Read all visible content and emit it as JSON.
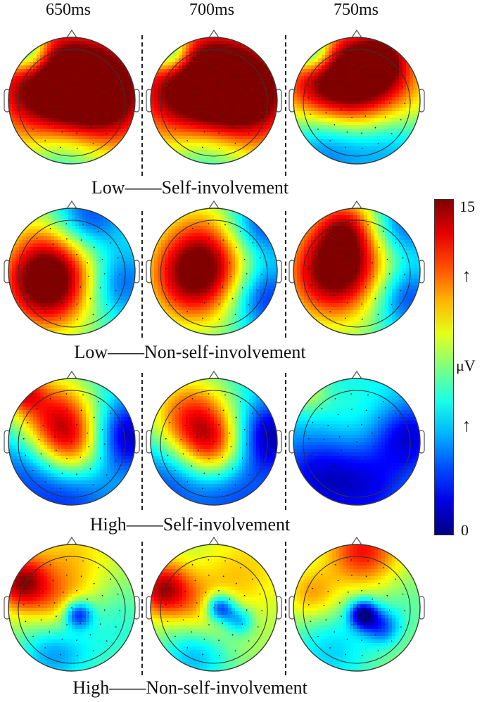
{
  "time_labels": [
    "650ms",
    "700ms",
    "750ms"
  ],
  "conditions": [
    "Low——Self-involvement",
    "Low——Non-self-involvement",
    "High——Self-involvement",
    "High——Non-self-involvement"
  ],
  "colorbar": {
    "max_label": "15",
    "min_label": "0",
    "unit_label": "μV",
    "arrow_up": "↑",
    "range": [
      0,
      15
    ],
    "colormap": "jet"
  },
  "maps": [
    [
      {
        "base": 7.5,
        "blobs": [
          [
            0.55,
            0.45,
            7,
            0.35
          ],
          [
            0.25,
            0.4,
            5,
            0.35
          ],
          [
            0.8,
            0.45,
            4.5,
            0.3
          ],
          [
            0.15,
            0.12,
            -6,
            0.12
          ],
          [
            0.45,
            0.9,
            -3.5,
            0.25
          ],
          [
            0.5,
            0.75,
            -1,
            0.3
          ]
        ]
      },
      {
        "base": 7.5,
        "blobs": [
          [
            0.55,
            0.45,
            7,
            0.35
          ],
          [
            0.25,
            0.4,
            5,
            0.35
          ],
          [
            0.8,
            0.45,
            4.5,
            0.3
          ],
          [
            0.15,
            0.12,
            -6,
            0.12
          ],
          [
            0.45,
            0.9,
            -3.5,
            0.25
          ],
          [
            0.5,
            0.75,
            -1,
            0.3
          ]
        ]
      },
      {
        "base": 7,
        "blobs": [
          [
            0.45,
            0.35,
            6,
            0.3
          ],
          [
            0.22,
            0.38,
            5,
            0.3
          ],
          [
            0.75,
            0.45,
            3.5,
            0.3
          ],
          [
            0.15,
            0.12,
            -6,
            0.12
          ],
          [
            0.25,
            0.8,
            -5,
            0.25
          ],
          [
            0.75,
            0.8,
            -4,
            0.25
          ],
          [
            0.7,
            0.15,
            4,
            0.15
          ]
        ]
      }
    ],
    [
      {
        "base": 6.5,
        "blobs": [
          [
            0.4,
            0.45,
            7,
            0.3
          ],
          [
            0.25,
            0.65,
            5,
            0.25
          ],
          [
            0.6,
            0.1,
            -5,
            0.2
          ],
          [
            0.85,
            0.6,
            -4,
            0.2
          ],
          [
            0.8,
            0.3,
            -1,
            0.3
          ]
        ]
      },
      {
        "base": 6.5,
        "blobs": [
          [
            0.45,
            0.4,
            7,
            0.3
          ],
          [
            0.3,
            0.6,
            4,
            0.25
          ],
          [
            0.85,
            0.15,
            -5,
            0.2
          ],
          [
            0.88,
            0.7,
            -5,
            0.2
          ]
        ]
      },
      {
        "base": 7,
        "blobs": [
          [
            0.45,
            0.4,
            6.5,
            0.3
          ],
          [
            0.25,
            0.55,
            4,
            0.25
          ],
          [
            0.85,
            0.15,
            -5,
            0.2
          ],
          [
            0.88,
            0.7,
            -5,
            0.2
          ],
          [
            0.4,
            0.15,
            3,
            0.15
          ]
        ]
      }
    ],
    [
      {
        "base": 5.5,
        "blobs": [
          [
            0.35,
            0.3,
            7,
            0.25
          ],
          [
            0.5,
            0.55,
            5.5,
            0.2
          ],
          [
            0.1,
            0.1,
            5,
            0.12
          ],
          [
            0.92,
            0.45,
            -5,
            0.2
          ],
          [
            0.15,
            0.65,
            -3,
            0.25
          ],
          [
            0.5,
            0.9,
            -3,
            0.25
          ]
        ]
      },
      {
        "base": 5.5,
        "blobs": [
          [
            0.3,
            0.3,
            6.5,
            0.25
          ],
          [
            0.5,
            0.55,
            6.5,
            0.2
          ],
          [
            0.92,
            0.45,
            -5,
            0.2
          ],
          [
            0.15,
            0.75,
            -3,
            0.25
          ],
          [
            0.65,
            0.85,
            -3,
            0.25
          ]
        ]
      },
      {
        "base": 5,
        "blobs": [
          [
            0.9,
            0.45,
            -4,
            0.2
          ],
          [
            0.2,
            0.75,
            -3.5,
            0.25
          ],
          [
            0.6,
            0.85,
            -3,
            0.25
          ],
          [
            0.5,
            0.35,
            1.5,
            0.35
          ],
          [
            0.1,
            0.1,
            3,
            0.12
          ]
        ]
      }
    ],
    [
      {
        "base": 8,
        "blobs": [
          [
            0.1,
            0.3,
            6,
            0.15
          ],
          [
            0.4,
            0.5,
            3,
            0.2
          ],
          [
            0.55,
            0.55,
            -6,
            0.08
          ],
          [
            0.35,
            0.85,
            -4,
            0.2
          ],
          [
            0.8,
            0.65,
            -2,
            0.25
          ],
          [
            0.5,
            0.1,
            2,
            0.25
          ]
        ]
      },
      {
        "base": 8,
        "blobs": [
          [
            0.1,
            0.35,
            6,
            0.15
          ],
          [
            0.4,
            0.55,
            3,
            0.2
          ],
          [
            0.55,
            0.5,
            -7,
            0.08
          ],
          [
            0.7,
            0.6,
            -4,
            0.08
          ],
          [
            0.35,
            0.85,
            -4,
            0.2
          ],
          [
            0.75,
            0.2,
            2,
            0.25
          ]
        ]
      },
      {
        "base": 8,
        "blobs": [
          [
            0.55,
            0.05,
            5,
            0.2
          ],
          [
            0.15,
            0.4,
            3,
            0.15
          ],
          [
            0.55,
            0.55,
            -7,
            0.08
          ],
          [
            0.7,
            0.65,
            -4,
            0.1
          ],
          [
            0.3,
            0.85,
            -3,
            0.25
          ],
          [
            0.9,
            0.5,
            -1,
            0.2
          ]
        ]
      }
    ]
  ]
}
